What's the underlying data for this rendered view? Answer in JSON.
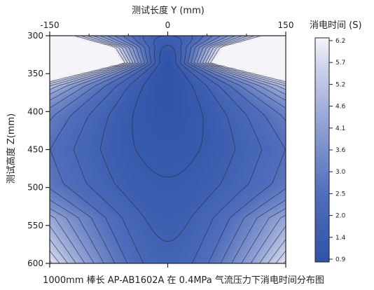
{
  "chart_data": {
    "type": "heatmap",
    "title": "1000mm 棒长 AP-AB1602A 在 0.4MPa 气流压力下消电时间分布图",
    "xlabel": "测试长度 Y (mm)",
    "ylabel": "测试高度 Z(mm)",
    "x_ticks": [
      "-150",
      "0",
      "150"
    ],
    "y_ticks": [
      "300",
      "350",
      "400",
      "450",
      "500",
      "550",
      "600"
    ],
    "xlim": [
      -150,
      150
    ],
    "ylim": [
      300,
      600
    ],
    "y_inverted": true,
    "x_axis_position": "top",
    "colorbar": {
      "title": "消电时间 (S)",
      "ticks": [
        "6.2",
        "5.7",
        "5.2",
        "4.6",
        "4.1",
        "3.6",
        "3.0",
        "2.5",
        "2.0",
        "1.4",
        "0.9"
      ],
      "range": [
        0.9,
        6.2
      ],
      "low_color": "#2f53a8",
      "high_color": "#f4f4f9",
      "position": "right"
    },
    "contour_lines": true,
    "grid": false,
    "trend": "Minimum discharge time (about 0.9 s) near Y=0, Z≈330; time increases toward the left and right edges, reaching about 6 s at the upper corners."
  }
}
